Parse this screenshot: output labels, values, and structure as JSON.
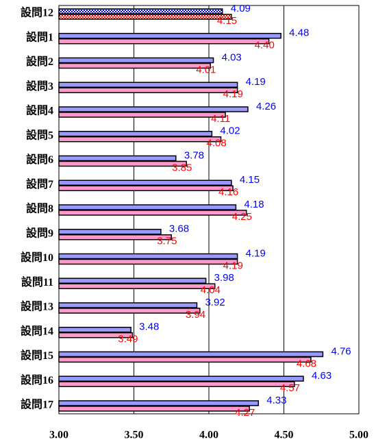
{
  "chart_data": {
    "type": "hbar",
    "categories": [
      "設問12",
      "設問1",
      "設問2",
      "設問3",
      "設問4",
      "設問5",
      "設問6",
      "設問7",
      "設問8",
      "設問9",
      "設問10",
      "設問11",
      "設問13",
      "設問14",
      "設問15",
      "設問16",
      "設問17"
    ],
    "series": [
      {
        "color": "#9999ff",
        "label_color": "#0000ff",
        "values": [
          4.09,
          4.48,
          4.03,
          4.19,
          4.26,
          4.02,
          3.78,
          4.15,
          4.18,
          3.68,
          4.19,
          3.98,
          3.92,
          3.48,
          4.76,
          4.63,
          4.33
        ],
        "value_labels": [
          "4.09",
          "4.48",
          "4.03",
          "4.19",
          "4.26",
          "4.02",
          "3.78",
          "4.15",
          "4.18",
          "3.68",
          "4.19",
          "3.98",
          "3.92",
          "3.48",
          "4.76",
          "4.63",
          "4.33"
        ]
      },
      {
        "color": "#ff99cc",
        "label_color": "#ff0000",
        "values": [
          4.15,
          4.4,
          4.01,
          4.19,
          4.11,
          4.08,
          3.85,
          4.16,
          4.25,
          3.75,
          4.19,
          4.04,
          3.94,
          3.49,
          4.68,
          4.57,
          4.27
        ],
        "value_labels": [
          "4.15",
          "4.40",
          "4.01",
          "4.19",
          "4.11",
          "4.08",
          "3.85",
          "4.16",
          "4.25",
          "3.75",
          "4.19",
          "4.04",
          "3.94",
          "3.49",
          "4.68",
          "4.57",
          "4.27"
        ]
      }
    ],
    "xlim": [
      3,
      5
    ],
    "xticks": [
      {
        "value": 3,
        "label": "3.00"
      },
      {
        "value": 3.5,
        "label": "3.50"
      },
      {
        "value": 4,
        "label": "4.00"
      },
      {
        "value": 4.5,
        "label": "4.50"
      },
      {
        "value": 5,
        "label": "5.00"
      }
    ],
    "grid": true
  }
}
